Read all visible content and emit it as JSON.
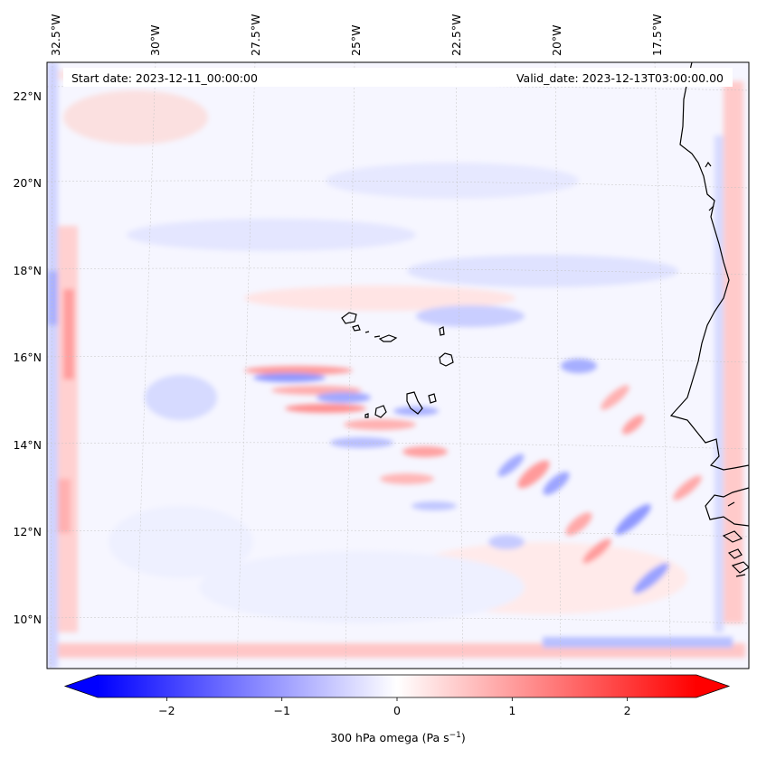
{
  "map": {
    "start_date_label": "Start date: 2023-12-11_00:00:00",
    "valid_date_label": "Valid_date: 2023-12-13T03:00:00.00",
    "longitude_labels": [
      "32.5°W",
      "30°W",
      "27.5°W",
      "25°W",
      "22.5°W",
      "20°W",
      "17.5°W"
    ],
    "latitude_labels": [
      "22°N",
      "20°N",
      "18°N",
      "16°N",
      "14°N",
      "12°N",
      "10°N"
    ],
    "gridlines": true,
    "coastline_color": "#000000"
  },
  "colorbar": {
    "ticks": [
      "−2",
      "−1",
      "0",
      "1",
      "2"
    ],
    "tick_values": [
      -2,
      -1,
      0,
      1,
      2
    ],
    "range": [
      -2.6,
      2.6
    ],
    "extend": "both",
    "colormap": "bwr",
    "low_color": "#0000ff",
    "mid_color": "#ffffff",
    "high_color": "#ff0000",
    "label_main": "300 hPa omega (Pa s",
    "label_sup": "−1",
    "label_close": ")"
  }
}
